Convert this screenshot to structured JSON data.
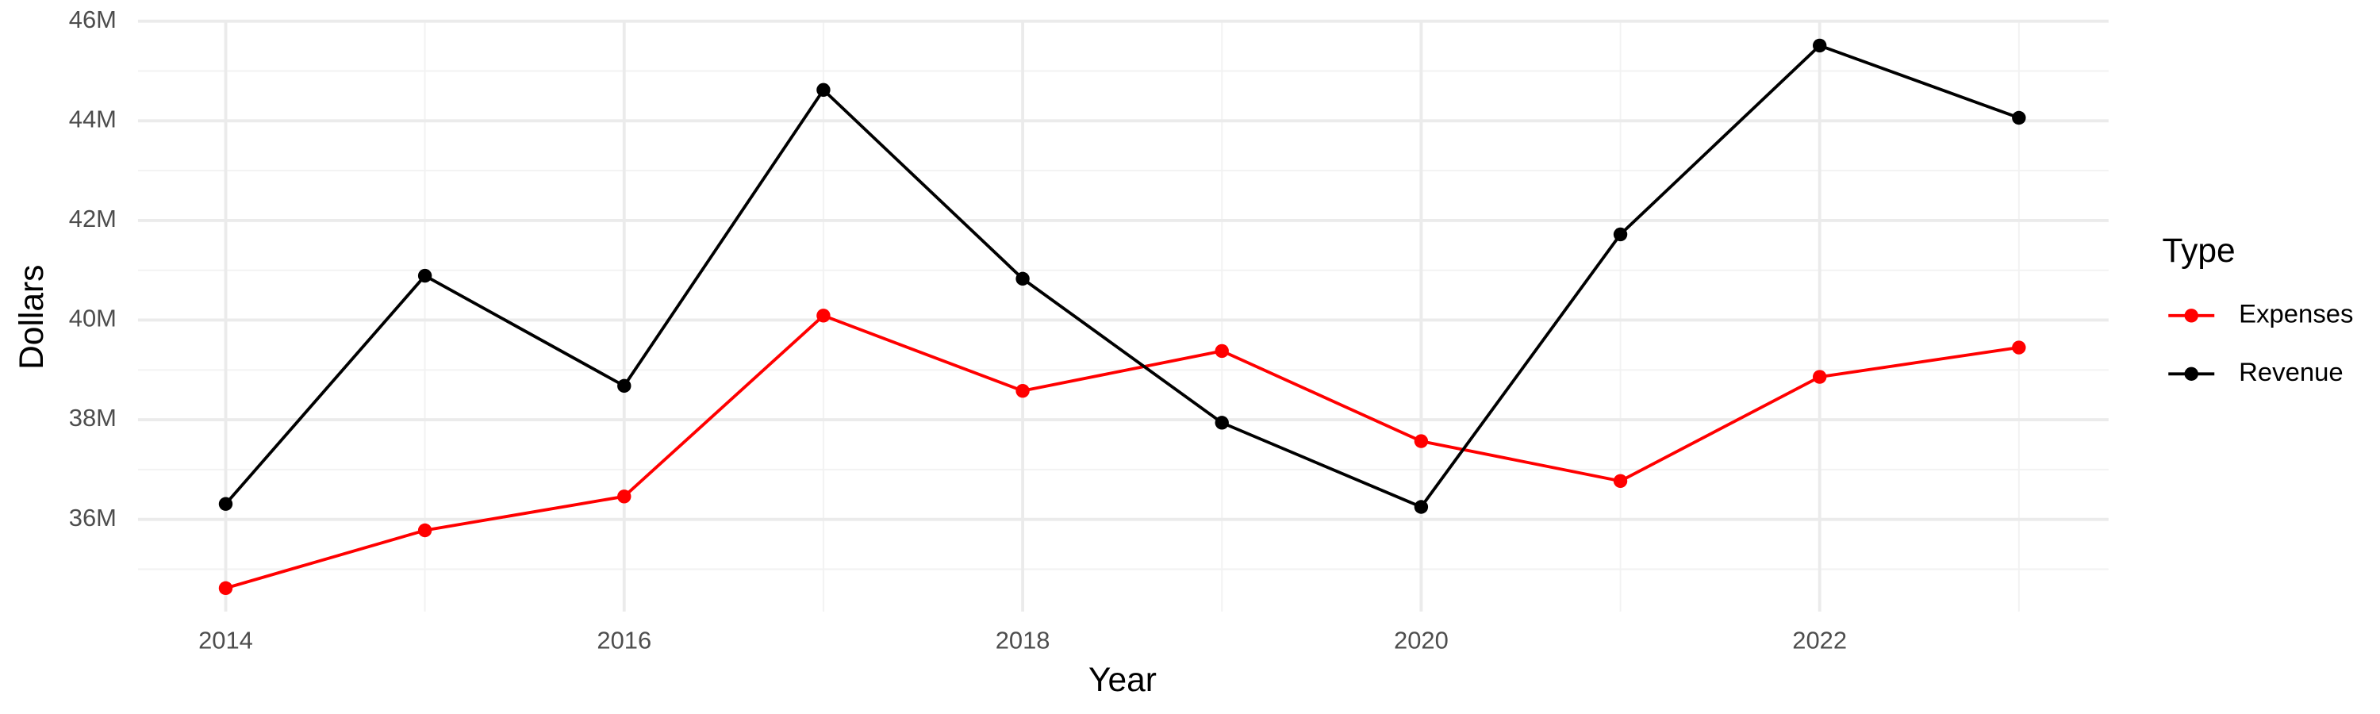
{
  "chart_data": {
    "type": "line",
    "x_label": "Year",
    "y_label": "Dollars",
    "legend_title": "Type",
    "x": [
      2014,
      2015,
      2016,
      2017,
      2018,
      2019,
      2020,
      2021,
      2022,
      2023
    ],
    "series": [
      {
        "name": "Expenses",
        "color": "#ff0000",
        "values": [
          34620000,
          35780000,
          36460000,
          40090000,
          38580000,
          39380000,
          37570000,
          36770000,
          38860000,
          39450000
        ]
      },
      {
        "name": "Revenue",
        "color": "#000000",
        "values": [
          36310000,
          40890000,
          38680000,
          44620000,
          40830000,
          37940000,
          36250000,
          41720000,
          45510000,
          44060000
        ]
      }
    ],
    "xlim": [
      2013.56,
      2023.45
    ],
    "ylim": [
      34150000,
      46000000
    ],
    "xticks": [
      2014,
      2016,
      2018,
      2020,
      2022
    ],
    "yticks": [
      {
        "value": 36000000,
        "label": "36M"
      },
      {
        "value": 38000000,
        "label": "38M"
      },
      {
        "value": 40000000,
        "label": "40M"
      },
      {
        "value": 42000000,
        "label": "42M"
      },
      {
        "value": 44000000,
        "label": "44M"
      },
      {
        "value": 46000000,
        "label": "46M"
      }
    ],
    "grid": true,
    "minor_grid": true,
    "legend_position": "right"
  }
}
